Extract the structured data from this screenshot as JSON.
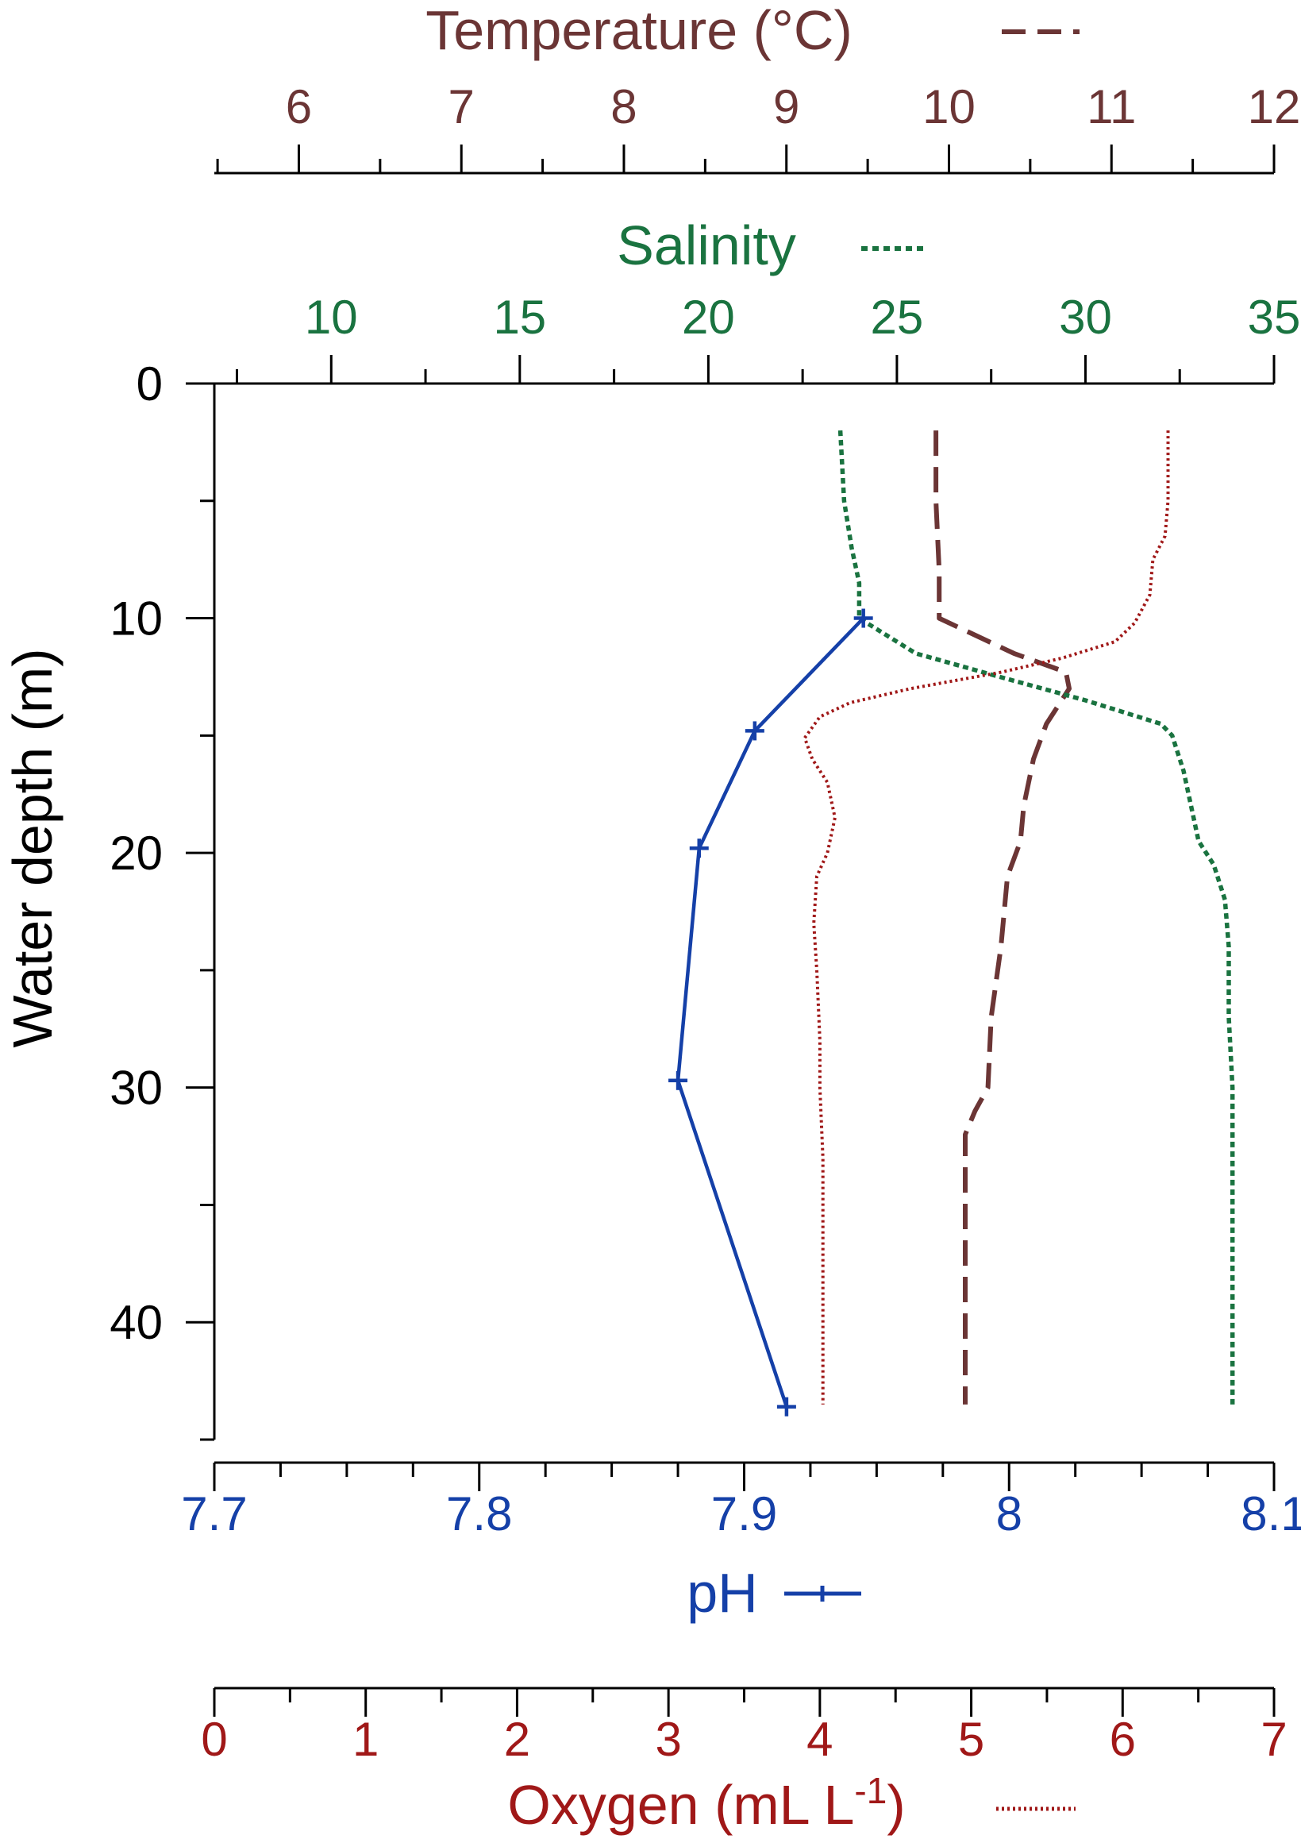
{
  "chart_data": {
    "type": "line",
    "y_axis": {
      "label": "Water depth (m)",
      "range": [
        0,
        45
      ],
      "reversed": true,
      "ticks": [
        0,
        10,
        20,
        30,
        40
      ],
      "minor_step": 5
    },
    "axes": {
      "temperature": {
        "label": "Temperature (°C)",
        "position": "top-outer",
        "range": [
          5.48,
          12
        ],
        "ticks": [
          6,
          7,
          8,
          9,
          10,
          11,
          12
        ],
        "minor_step": 0.5,
        "color": "#6b3535"
      },
      "salinity": {
        "label": "Salinity",
        "position": "top-inner",
        "range": [
          6.9,
          35
        ],
        "ticks": [
          10,
          15,
          20,
          25,
          30,
          35
        ],
        "minor_step": 2.5,
        "color": "#1a7340"
      },
      "ph": {
        "label": "pH",
        "position": "bottom-inner",
        "range": [
          7.7,
          8.1
        ],
        "ticks": [
          7.7,
          7.8,
          7.9,
          8,
          8.1
        ],
        "tick_labels": [
          "7.7",
          "7.8",
          "7.9",
          "8",
          "8.1"
        ],
        "minor_step": 0.025,
        "color": "#1540a8"
      },
      "oxygen": {
        "label_main": "Oxygen (mL L",
        "label_sup": "-1",
        "label_end": ")",
        "position": "bottom-outer",
        "range": [
          0,
          7
        ],
        "ticks": [
          0,
          1,
          2,
          3,
          4,
          5,
          6,
          7
        ],
        "minor_step": 0.5,
        "color": "#a01818"
      }
    },
    "series": [
      {
        "name": "Temperature (°C)",
        "axis": "temperature",
        "style": "dashed",
        "points": [
          [
            9.92,
            2
          ],
          [
            9.92,
            5
          ],
          [
            9.94,
            8
          ],
          [
            9.94,
            10
          ],
          [
            10.4,
            11.5
          ],
          [
            10.72,
            12.3
          ],
          [
            10.74,
            13
          ],
          [
            10.6,
            14.5
          ],
          [
            10.52,
            16
          ],
          [
            10.46,
            18
          ],
          [
            10.44,
            19.5
          ],
          [
            10.36,
            21
          ],
          [
            10.32,
            24
          ],
          [
            10.26,
            27
          ],
          [
            10.24,
            30
          ],
          [
            10.16,
            31
          ],
          [
            10.1,
            32
          ],
          [
            10.1,
            36
          ],
          [
            10.1,
            40
          ],
          [
            10.1,
            43.5
          ]
        ]
      },
      {
        "name": "Salinity",
        "axis": "salinity",
        "style": "dotted",
        "points": [
          [
            23.5,
            2
          ],
          [
            23.6,
            5
          ],
          [
            23.8,
            7
          ],
          [
            24.0,
            8.5
          ],
          [
            24.0,
            10
          ],
          [
            25.5,
            11.5
          ],
          [
            27.5,
            12.4
          ],
          [
            30.0,
            13.5
          ],
          [
            32.0,
            14.5
          ],
          [
            32.3,
            15
          ],
          [
            32.6,
            16.5
          ],
          [
            32.8,
            18
          ],
          [
            33.0,
            19.5
          ],
          [
            33.4,
            20.5
          ],
          [
            33.7,
            22
          ],
          [
            33.8,
            24
          ],
          [
            33.8,
            27
          ],
          [
            33.9,
            30
          ],
          [
            33.9,
            33
          ],
          [
            33.9,
            36
          ],
          [
            33.9,
            40
          ],
          [
            33.9,
            43.5
          ]
        ]
      },
      {
        "name": "pH",
        "axis": "ph",
        "style": "solid-markers",
        "points": [
          [
            7.945,
            10
          ],
          [
            7.904,
            14.8
          ],
          [
            7.883,
            19.8
          ],
          [
            7.875,
            29.7
          ],
          [
            7.916,
            43.6
          ]
        ]
      },
      {
        "name": "Oxygen (mL L-1)",
        "axis": "oxygen",
        "style": "dotted",
        "points": [
          [
            6.3,
            2
          ],
          [
            6.3,
            5
          ],
          [
            6.28,
            6.5
          ],
          [
            6.2,
            7.5
          ],
          [
            6.18,
            9
          ],
          [
            6.08,
            10.2
          ],
          [
            5.95,
            11
          ],
          [
            5.6,
            11.7
          ],
          [
            5.2,
            12.3
          ],
          [
            4.6,
            13
          ],
          [
            4.2,
            13.6
          ],
          [
            4.0,
            14.2
          ],
          [
            3.9,
            15.1
          ],
          [
            3.95,
            16
          ],
          [
            4.05,
            17
          ],
          [
            4.1,
            18.5
          ],
          [
            4.05,
            20
          ],
          [
            3.98,
            21
          ],
          [
            3.96,
            23
          ],
          [
            3.98,
            25
          ],
          [
            4.0,
            28
          ],
          [
            4.0,
            30
          ],
          [
            4.02,
            33
          ],
          [
            4.02,
            36
          ],
          [
            4.02,
            40
          ],
          [
            4.02,
            43.5
          ]
        ]
      }
    ]
  }
}
